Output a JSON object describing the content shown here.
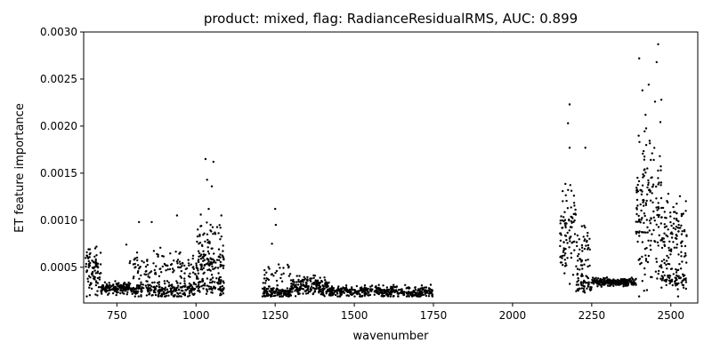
{
  "chart_data": {
    "type": "scatter",
    "title": "product: mixed, flag: RadianceResidualRMS, AUC: 0.899",
    "xlabel": "wavenumber",
    "ylabel": "ET feature importance",
    "xlim": [
      645,
      2585
    ],
    "ylim": [
      0.00012,
      0.003
    ],
    "xticks": [
      750,
      1000,
      1250,
      1500,
      1750,
      2000,
      2250,
      2500
    ],
    "yticks": [
      0.0005,
      0.001,
      0.0015,
      0.002,
      0.0025,
      0.003
    ],
    "xtick_labels": [
      "750",
      "1000",
      "1250",
      "1500",
      "1750",
      "2000",
      "2250",
      "2500"
    ],
    "ytick_labels": [
      "0.0005",
      "0.0010",
      "0.0015",
      "0.0020",
      "0.0025",
      "0.0030"
    ],
    "grid": false,
    "marker_color": "#000000",
    "point_clusters": [
      {
        "x_range": [
          650,
          700
        ],
        "y_center": 0.00045,
        "y_spread": 0.00012,
        "count": 90
      },
      {
        "x_range": [
          700,
          790
        ],
        "y_center": 0.00028,
        "y_spread": 3e-05,
        "count": 150
      },
      {
        "x_range": [
          790,
          1000
        ],
        "y_center": 0.00026,
        "y_spread": 4e-05,
        "count": 240
      },
      {
        "x_range": [
          790,
          1000
        ],
        "y_center": 0.0005,
        "y_spread": 8e-05,
        "count": 110
      },
      {
        "x_range": [
          1000,
          1090
        ],
        "y_center": 0.0003,
        "y_spread": 6e-05,
        "count": 90
      },
      {
        "x_range": [
          1000,
          1090
        ],
        "y_center": 0.00055,
        "y_spread": 6e-05,
        "count": 90
      },
      {
        "x_range": [
          1000,
          1090
        ],
        "y_center": 0.00082,
        "y_spread": 8e-05,
        "count": 40
      },
      {
        "x_range": [
          1210,
          1300
        ],
        "y_center": 0.00023,
        "y_spread": 3e-05,
        "count": 140
      },
      {
        "x_range": [
          1210,
          1300
        ],
        "y_center": 0.00045,
        "y_spread": 6e-05,
        "count": 30
      },
      {
        "x_range": [
          1300,
          1420
        ],
        "y_center": 0.0003,
        "y_spread": 5e-05,
        "count": 200
      },
      {
        "x_range": [
          1420,
          1750
        ],
        "y_center": 0.00024,
        "y_spread": 3e-05,
        "count": 420
      },
      {
        "x_range": [
          2150,
          2200
        ],
        "y_center": 0.0009,
        "y_spread": 0.00022,
        "count": 90
      },
      {
        "x_range": [
          2200,
          2245
        ],
        "y_center": 0.00065,
        "y_spread": 0.0002,
        "count": 60
      },
      {
        "x_range": [
          2200,
          2250
        ],
        "y_center": 0.0003,
        "y_spread": 3e-05,
        "count": 40
      },
      {
        "x_range": [
          2250,
          2390
        ],
        "y_center": 0.00034,
        "y_spread": 2e-05,
        "count": 220
      },
      {
        "x_range": [
          2390,
          2470
        ],
        "y_center": 0.0011,
        "y_spread": 0.0004,
        "count": 170
      },
      {
        "x_range": [
          2470,
          2550
        ],
        "y_center": 0.0008,
        "y_spread": 0.00025,
        "count": 120
      },
      {
        "x_range": [
          2470,
          2550
        ],
        "y_center": 0.00036,
        "y_spread": 4e-05,
        "count": 60
      }
    ],
    "outliers": [
      {
        "x": 820,
        "y": 0.00098
      },
      {
        "x": 860,
        "y": 0.00098
      },
      {
        "x": 780,
        "y": 0.00074
      },
      {
        "x": 940,
        "y": 0.00105
      },
      {
        "x": 1015,
        "y": 0.00106
      },
      {
        "x": 1030,
        "y": 0.00165
      },
      {
        "x": 1055,
        "y": 0.00162
      },
      {
        "x": 1035,
        "y": 0.00143
      },
      {
        "x": 1050,
        "y": 0.00136
      },
      {
        "x": 1040,
        "y": 0.00112
      },
      {
        "x": 1080,
        "y": 0.00105
      },
      {
        "x": 1250,
        "y": 0.00112
      },
      {
        "x": 1252,
        "y": 0.00095
      },
      {
        "x": 1240,
        "y": 0.00075
      },
      {
        "x": 2180,
        "y": 0.00223
      },
      {
        "x": 2175,
        "y": 0.00203
      },
      {
        "x": 2230,
        "y": 0.00177
      },
      {
        "x": 2180,
        "y": 0.00177
      },
      {
        "x": 2460,
        "y": 0.00287
      },
      {
        "x": 2455,
        "y": 0.00268
      },
      {
        "x": 2400,
        "y": 0.00272
      },
      {
        "x": 2430,
        "y": 0.00244
      },
      {
        "x": 2410,
        "y": 0.00238
      },
      {
        "x": 2470,
        "y": 0.00228
      },
      {
        "x": 2450,
        "y": 0.00226
      },
      {
        "x": 2420,
        "y": 0.00212
      }
    ]
  }
}
